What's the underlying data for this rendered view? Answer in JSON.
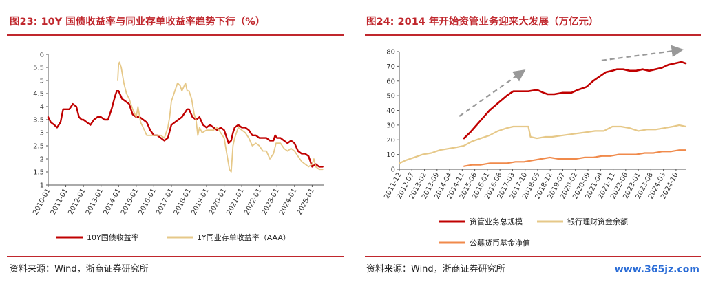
{
  "chart_data": [
    {
      "type": "line",
      "title": "图23:   10Y 国债收益率与同业存单收益率趋势下行（%）",
      "ylim": [
        1,
        6
      ],
      "yticks": [
        "1",
        "1.5",
        "2",
        "2.5",
        "3",
        "3.5",
        "4",
        "4.5",
        "5",
        "5.5",
        "6"
      ],
      "xticks": [
        "2010-01",
        "2011-01",
        "2012-01",
        "2013-01",
        "2014-01",
        "2015-01",
        "2016-01",
        "2017-01",
        "2018-01",
        "2019-01",
        "2020-01",
        "2021-01",
        "2022-01",
        "2023-01",
        "2024-01",
        "2025-01"
      ],
      "xlim": [
        2010.0,
        2025.65
      ],
      "legend_position": "bottom",
      "series": [
        {
          "name": "10Y国债收益率",
          "color": "#c00000",
          "x": [
            2010.0,
            2010.15,
            2010.35,
            2010.5,
            2010.7,
            2010.85,
            2011.0,
            2011.2,
            2011.4,
            2011.6,
            2011.75,
            2011.9,
            2012.0,
            2012.2,
            2012.4,
            2012.6,
            2012.8,
            2013.0,
            2013.2,
            2013.4,
            2013.6,
            2013.8,
            2013.9,
            2014.0,
            2014.2,
            2014.4,
            2014.6,
            2014.8,
            2015.0,
            2015.2,
            2015.4,
            2015.6,
            2015.8,
            2016.0,
            2016.2,
            2016.4,
            2016.6,
            2016.8,
            2017.0,
            2017.2,
            2017.4,
            2017.6,
            2017.8,
            2017.9,
            2018.0,
            2018.2,
            2018.4,
            2018.6,
            2018.8,
            2019.0,
            2019.2,
            2019.4,
            2019.6,
            2019.8,
            2020.0,
            2020.1,
            2020.25,
            2020.4,
            2020.5,
            2020.6,
            2020.8,
            2021.0,
            2021.2,
            2021.4,
            2021.6,
            2021.8,
            2022.0,
            2022.2,
            2022.4,
            2022.6,
            2022.8,
            2022.9,
            2023.0,
            2023.2,
            2023.4,
            2023.6,
            2023.8,
            2024.0,
            2024.2,
            2024.4,
            2024.6,
            2024.8,
            2025.0,
            2025.2,
            2025.4,
            2025.6
          ],
          "y": [
            3.6,
            3.4,
            3.3,
            3.2,
            3.4,
            3.9,
            3.9,
            3.9,
            4.1,
            4.0,
            3.6,
            3.5,
            3.5,
            3.4,
            3.3,
            3.5,
            3.6,
            3.6,
            3.5,
            3.5,
            3.9,
            4.4,
            4.6,
            4.6,
            4.3,
            4.2,
            4.1,
            3.7,
            3.6,
            3.6,
            3.5,
            3.4,
            3.1,
            2.9,
            2.9,
            2.8,
            2.7,
            2.8,
            3.3,
            3.4,
            3.5,
            3.6,
            3.8,
            3.9,
            3.9,
            3.6,
            3.5,
            3.6,
            3.3,
            3.2,
            3.3,
            3.2,
            3.1,
            3.2,
            3.1,
            2.9,
            2.6,
            2.7,
            3.0,
            3.2,
            3.3,
            3.2,
            3.2,
            3.1,
            2.9,
            2.9,
            2.8,
            2.8,
            2.8,
            2.7,
            2.7,
            2.9,
            2.8,
            2.8,
            2.7,
            2.6,
            2.7,
            2.6,
            2.3,
            2.2,
            2.2,
            2.1,
            1.7,
            1.8,
            1.7,
            1.7
          ]
        },
        {
          "name": "1Y同业存单收益率（AAA）",
          "color": "#e6c888",
          "x": [
            2013.95,
            2014.0,
            2014.05,
            2014.15,
            2014.3,
            2014.45,
            2014.6,
            2014.8,
            2015.0,
            2015.1,
            2015.25,
            2015.4,
            2015.6,
            2015.8,
            2016.0,
            2016.2,
            2016.4,
            2016.6,
            2016.8,
            2016.9,
            2017.0,
            2017.2,
            2017.35,
            2017.5,
            2017.6,
            2017.8,
            2017.9,
            2018.0,
            2018.15,
            2018.3,
            2018.4,
            2018.5,
            2018.6,
            2018.75,
            2019.0,
            2019.2,
            2019.4,
            2019.6,
            2019.8,
            2020.0,
            2020.1,
            2020.3,
            2020.4,
            2020.45,
            2020.5,
            2020.6,
            2020.8,
            2021.0,
            2021.2,
            2021.4,
            2021.6,
            2021.8,
            2022.0,
            2022.2,
            2022.4,
            2022.6,
            2022.8,
            2022.95,
            2023.0,
            2023.2,
            2023.4,
            2023.6,
            2023.8,
            2024.0,
            2024.2,
            2024.4,
            2024.6,
            2024.8,
            2025.0,
            2025.1,
            2025.2,
            2025.4,
            2025.6
          ],
          "y": [
            5.0,
            5.6,
            5.7,
            5.5,
            4.9,
            4.5,
            4.3,
            3.9,
            3.6,
            4.0,
            3.4,
            3.2,
            2.9,
            2.9,
            2.9,
            2.9,
            2.9,
            2.8,
            3.2,
            3.6,
            4.2,
            4.6,
            4.9,
            4.8,
            4.6,
            4.9,
            4.6,
            4.6,
            4.3,
            3.7,
            3.5,
            2.9,
            3.2,
            3.0,
            3.1,
            3.1,
            3.1,
            3.2,
            3.0,
            2.8,
            2.4,
            1.6,
            1.5,
            2.0,
            2.5,
            2.8,
            3.2,
            3.1,
            3.0,
            2.8,
            2.5,
            2.6,
            2.5,
            2.3,
            2.3,
            2.0,
            2.2,
            2.6,
            2.6,
            2.6,
            2.4,
            2.3,
            2.4,
            2.3,
            2.1,
            1.9,
            1.8,
            1.7,
            1.8,
            2.0,
            1.7,
            1.6,
            1.6
          ]
        }
      ]
    },
    {
      "type": "line",
      "title": "图24:   2014 年开始资管业务迎来大发展（万亿元）",
      "ylim": [
        0,
        80
      ],
      "yticks": [
        "0",
        "10",
        "20",
        "30",
        "40",
        "50",
        "60",
        "70",
        "80"
      ],
      "xticks": [
        "2011-12",
        "2012-07",
        "2013-02",
        "2013-09",
        "2014-04",
        "2014-11",
        "2015-06",
        "2016-01",
        "2016-08",
        "2017-03",
        "2017-10",
        "2018-05",
        "2018-12",
        "2019-07",
        "2020-02",
        "2020-09",
        "2021-04",
        "2021-11",
        "2022-06",
        "2023-01",
        "2023-08",
        "2024-03",
        "2024-10"
      ],
      "xlim": [
        2011.917,
        2025.2
      ],
      "legend_position": "bottom",
      "series": [
        {
          "name": "资管业务总规模",
          "color": "#c00000",
          "x": [
            2014.92,
            2015.2,
            2015.5,
            2015.8,
            2016.1,
            2016.5,
            2016.9,
            2017.2,
            2017.5,
            2017.9,
            2018.3,
            2018.6,
            2018.8,
            2019.1,
            2019.5,
            2019.9,
            2020.2,
            2020.6,
            2020.9,
            2021.2,
            2021.5,
            2021.8,
            2022.0,
            2022.3,
            2022.6,
            2022.9,
            2023.2,
            2023.5,
            2023.8,
            2024.1,
            2024.4,
            2024.7,
            2025.0,
            2025.2
          ],
          "y": [
            21,
            25,
            30,
            35,
            40,
            45,
            50,
            53,
            53,
            53,
            54,
            52,
            51,
            51,
            52,
            52,
            54,
            56,
            60,
            63,
            66,
            67,
            68,
            68,
            67,
            67,
            68,
            67,
            68,
            69,
            71,
            72,
            73,
            72
          ]
        },
        {
          "name": "银行理财资金余额",
          "color": "#e6c888",
          "x": [
            2011.92,
            2012.2,
            2012.6,
            2013.0,
            2013.4,
            2013.8,
            2014.2,
            2014.6,
            2014.92,
            2015.3,
            2015.7,
            2016.1,
            2016.5,
            2016.9,
            2017.2,
            2017.6,
            2017.9,
            2018.0,
            2018.3,
            2018.7,
            2019.0,
            2019.5,
            2020.0,
            2020.5,
            2021.0,
            2021.4,
            2021.8,
            2022.2,
            2022.6,
            2023.0,
            2023.4,
            2023.8,
            2024.2,
            2024.6,
            2024.9,
            2025.2
          ],
          "y": [
            4,
            6,
            8,
            10,
            11,
            13,
            14,
            15,
            16,
            19,
            21,
            23,
            26,
            28,
            29,
            29,
            29,
            22,
            21,
            22,
            22,
            23,
            24,
            25,
            26,
            26,
            29,
            29,
            28,
            26,
            27,
            27,
            28,
            29,
            30,
            29
          ]
        },
        {
          "name": "公募货币基金净值",
          "color": "#f08a4b",
          "x": [
            2014.92,
            2015.3,
            2015.7,
            2016.1,
            2016.5,
            2016.9,
            2017.3,
            2017.7,
            2018.1,
            2018.5,
            2018.9,
            2019.3,
            2019.7,
            2020.1,
            2020.5,
            2020.9,
            2021.3,
            2021.7,
            2022.1,
            2022.5,
            2022.9,
            2023.3,
            2023.7,
            2024.1,
            2024.5,
            2024.9,
            2025.2
          ],
          "y": [
            2,
            3,
            3,
            4,
            4,
            4,
            5,
            5,
            6,
            7,
            8,
            7,
            7,
            7,
            8,
            8,
            9,
            9,
            10,
            10,
            10,
            11,
            11,
            12,
            12,
            13,
            13
          ]
        }
      ]
    }
  ],
  "left_panel": {
    "source": "资料来源：Wind，浙商证券研究所"
  },
  "right_panel": {
    "source": "资料来源：Wind，浙商证券研究所"
  },
  "watermark": "www.365jz.com"
}
